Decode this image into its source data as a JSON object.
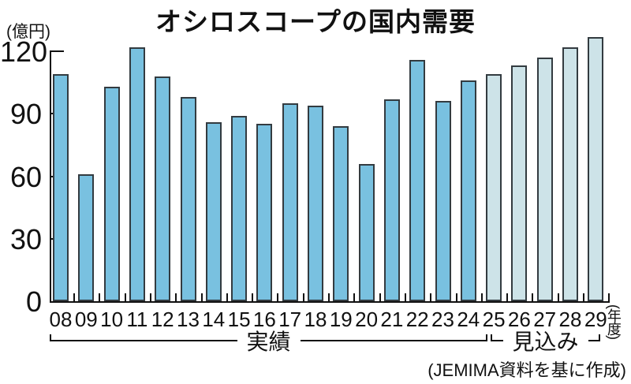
{
  "title": "オシロスコープの国内需要",
  "y_axis": {
    "unit_label": "(億円)",
    "tick_labels": [
      "120",
      "90",
      "60",
      "30",
      "0"
    ]
  },
  "x_axis": {
    "suffix_label": "(年度)"
  },
  "groups": {
    "actual_label": "実績",
    "forecast_label": "見込み"
  },
  "source": "(JEMIMA資料を基に作成)",
  "colors": {
    "actual_bar": "#79c1e0",
    "forecast_bar": "#cde3e8",
    "bar_outline": "#333b40",
    "axis": "#111111"
  },
  "chart_data": {
    "type": "bar",
    "title": "オシロスコープの国内需要",
    "ylabel": "(億円)",
    "xlabel": "年度",
    "ylim": [
      0,
      120
    ],
    "yticks": [
      0,
      30,
      60,
      90,
      120
    ],
    "grid": false,
    "categories": [
      "08",
      "09",
      "10",
      "11",
      "12",
      "13",
      "14",
      "15",
      "16",
      "17",
      "18",
      "19",
      "20",
      "21",
      "22",
      "23",
      "24",
      "25",
      "26",
      "27",
      "28",
      "29"
    ],
    "values": [
      109,
      61,
      103,
      122,
      108,
      98,
      86,
      89,
      85,
      95,
      94,
      84,
      66,
      97,
      116,
      96,
      106,
      109,
      113,
      117,
      122,
      127
    ],
    "segments": [
      {
        "label": "実績",
        "start_index": 0,
        "end_index": 16,
        "color": "#79c1e0"
      },
      {
        "label": "見込み",
        "start_index": 17,
        "end_index": 21,
        "color": "#cde3e8"
      }
    ],
    "source": "(JEMIMA資料を基に作成)"
  }
}
